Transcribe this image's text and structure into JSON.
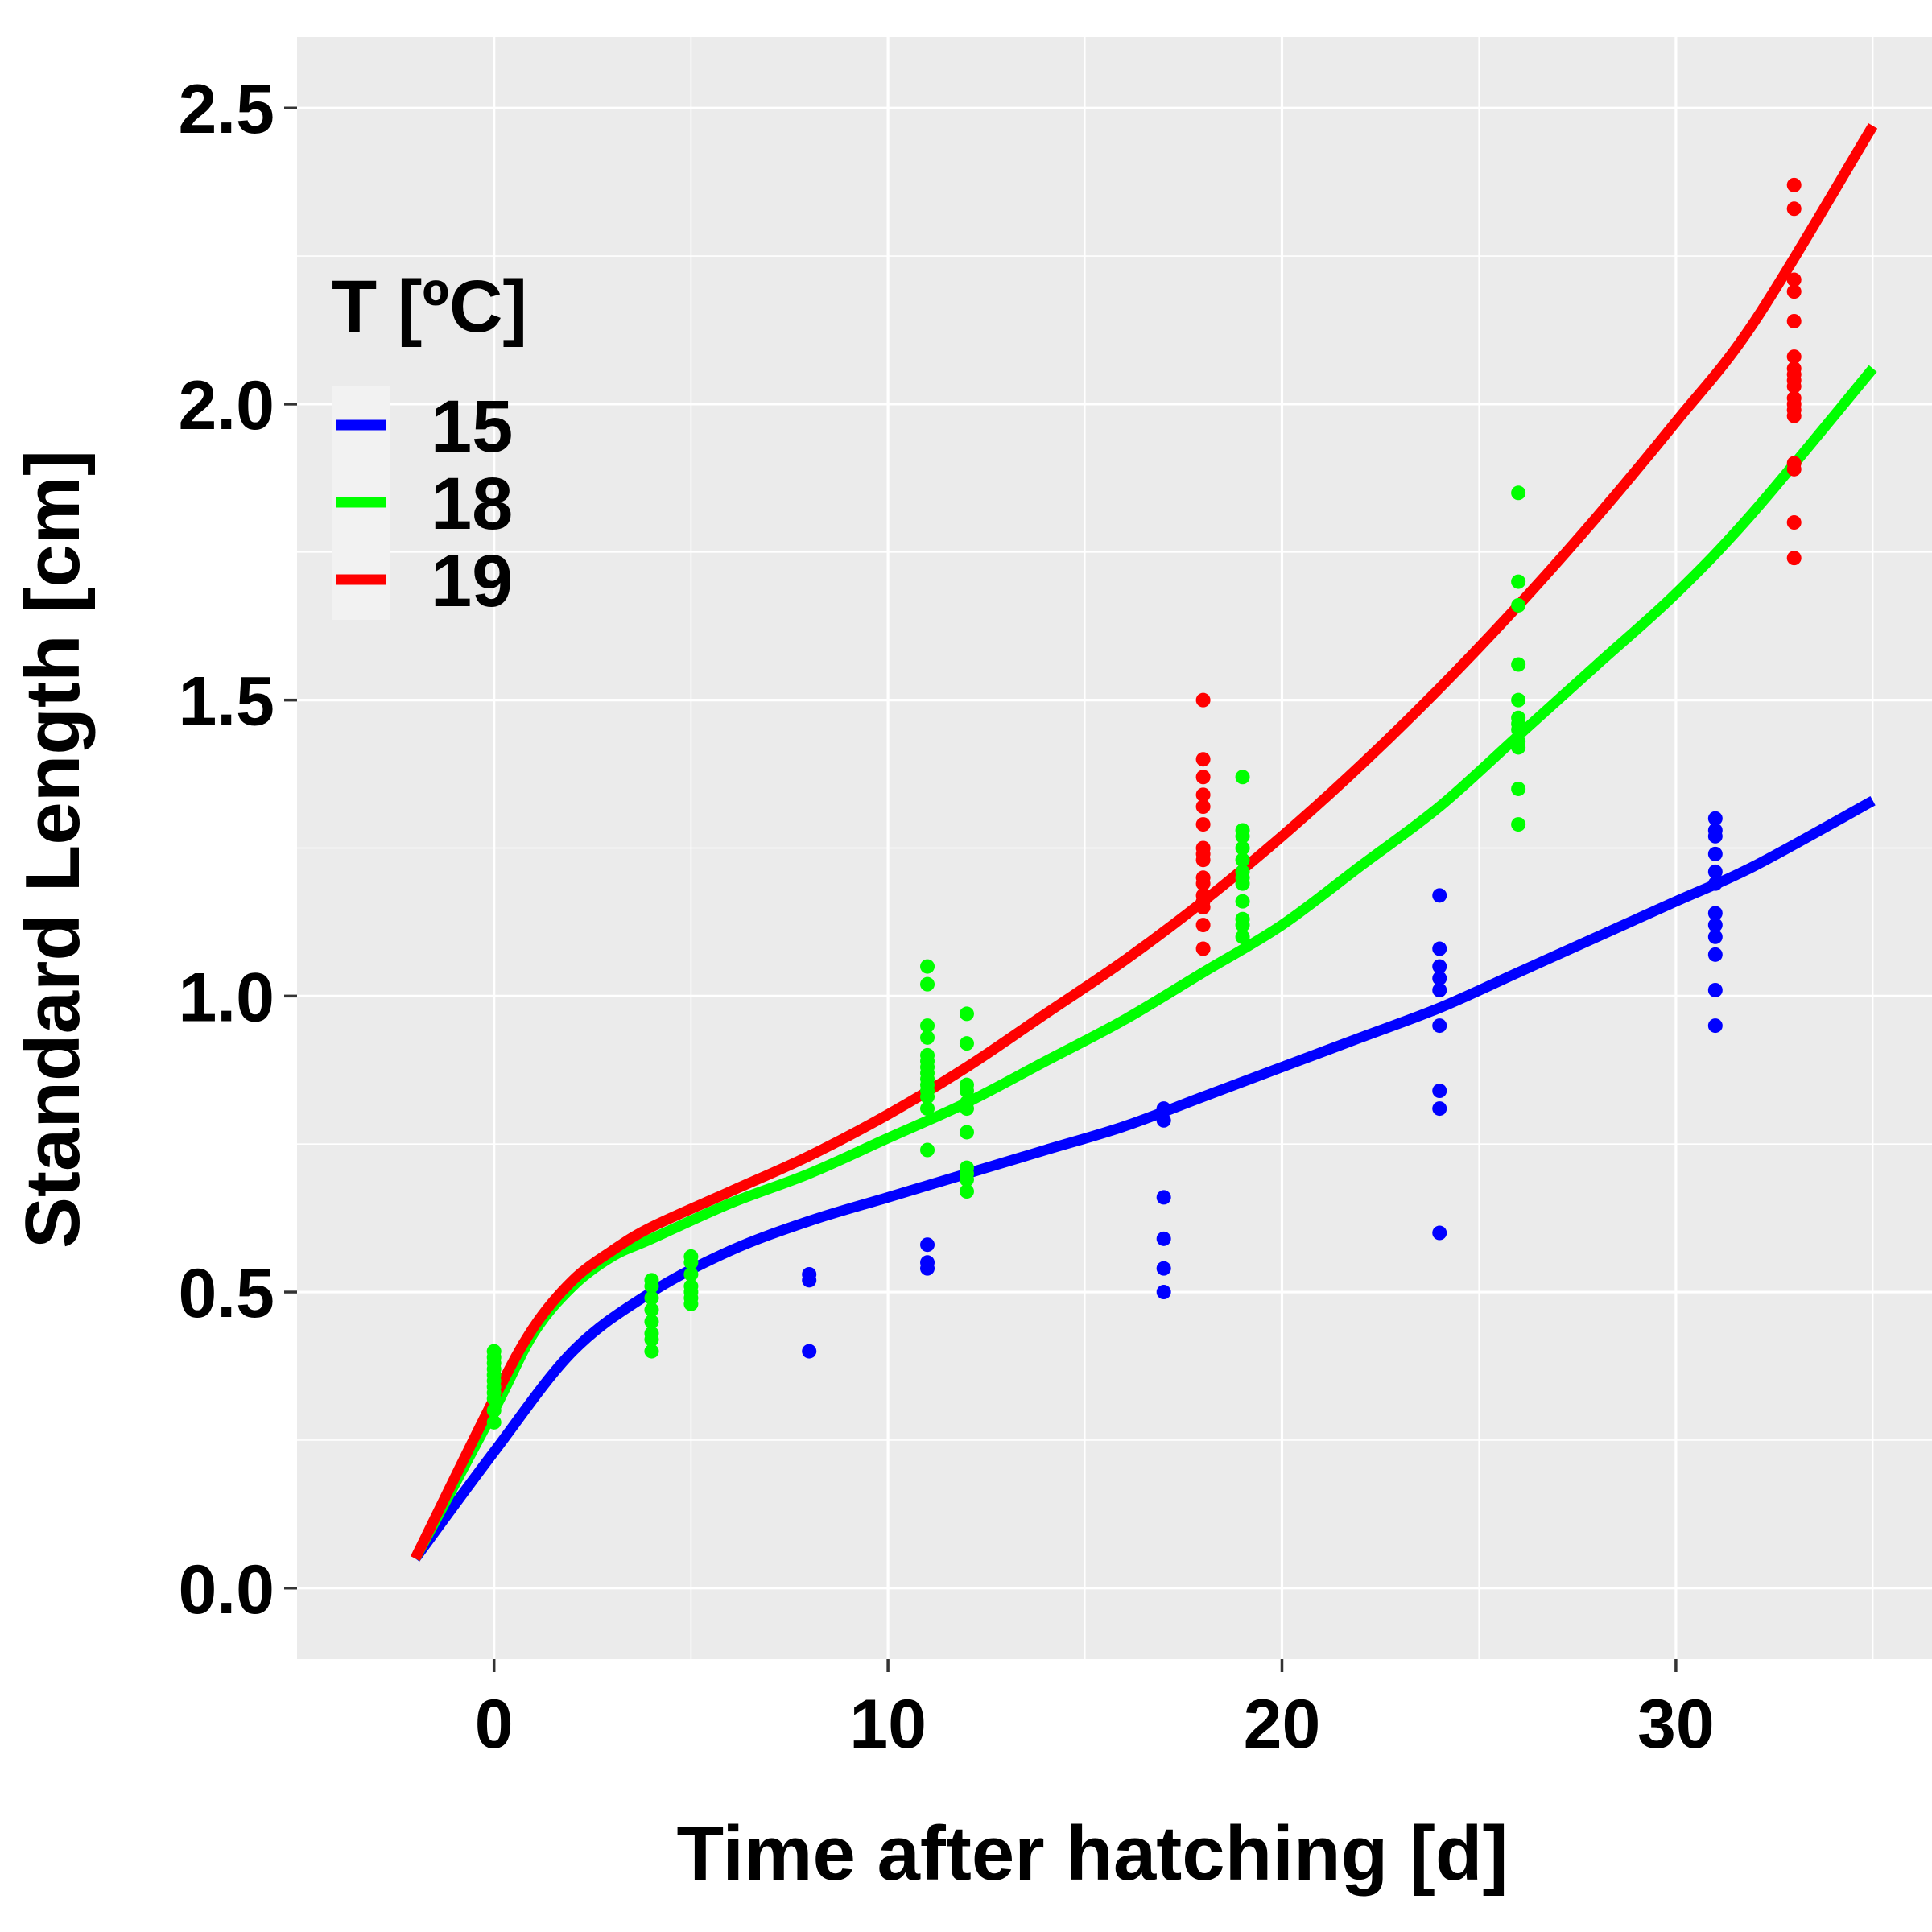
{
  "chart_data": {
    "type": "scatter",
    "xlabel": "Time after hatching [d]",
    "ylabel": "Standard Length [cm]",
    "xlim": [
      -5,
      36.5
    ],
    "ylim": [
      -0.12,
      2.62
    ],
    "x_ticks": [
      0,
      10,
      20,
      30
    ],
    "x_tick_labels": [
      "0",
      "10",
      "20",
      "30"
    ],
    "y_ticks": [
      0.0,
      0.5,
      1.0,
      1.5,
      2.0,
      2.5
    ],
    "y_tick_labels": [
      "0.0",
      "0.5",
      "1.0",
      "1.5",
      "2.0",
      "2.5"
    ],
    "grid": true,
    "background": "#ebebeb",
    "legend": {
      "title": "T [ºC]",
      "placement": "upper-left inside plot",
      "entries": [
        "15",
        "18",
        "19"
      ]
    },
    "series": [
      {
        "name": "15",
        "color": "#0000ff",
        "curve": [
          [
            -2,
            0.05
          ],
          [
            0,
            0.23
          ],
          [
            2,
            0.4
          ],
          [
            4,
            0.5
          ],
          [
            6,
            0.57
          ],
          [
            8,
            0.62
          ],
          [
            10,
            0.66
          ],
          [
            12,
            0.7
          ],
          [
            14,
            0.74
          ],
          [
            16,
            0.78
          ],
          [
            18,
            0.83
          ],
          [
            20,
            0.88
          ],
          [
            22,
            0.93
          ],
          [
            24,
            0.98
          ],
          [
            26,
            1.04
          ],
          [
            28,
            1.1
          ],
          [
            30,
            1.16
          ],
          [
            32,
            1.22
          ],
          [
            35,
            1.33
          ]
        ],
        "points": [
          [
            8,
            0.53
          ],
          [
            8,
            0.52
          ],
          [
            8,
            0.4
          ],
          [
            11,
            0.58
          ],
          [
            11,
            0.55
          ],
          [
            11,
            0.54
          ],
          [
            17,
            0.81
          ],
          [
            17,
            0.79
          ],
          [
            17,
            0.66
          ],
          [
            17,
            0.59
          ],
          [
            17,
            0.54
          ],
          [
            17,
            0.5
          ],
          [
            24,
            1.17
          ],
          [
            24,
            1.08
          ],
          [
            24,
            1.05
          ],
          [
            24,
            1.03
          ],
          [
            24,
            1.01
          ],
          [
            24,
            0.95
          ],
          [
            24,
            0.84
          ],
          [
            24,
            0.81
          ],
          [
            24,
            0.6
          ],
          [
            31,
            1.3
          ],
          [
            31,
            1.28
          ],
          [
            31,
            1.27
          ],
          [
            31,
            1.24
          ],
          [
            31,
            1.21
          ],
          [
            31,
            1.19
          ],
          [
            31,
            1.14
          ],
          [
            31,
            1.12
          ],
          [
            31,
            1.1
          ],
          [
            31,
            1.07
          ],
          [
            31,
            1.01
          ],
          [
            31,
            0.95
          ]
        ]
      },
      {
        "name": "18",
        "color": "#00ff00",
        "curve": [
          [
            -2,
            0.05
          ],
          [
            0,
            0.3
          ],
          [
            1,
            0.43
          ],
          [
            2,
            0.51
          ],
          [
            3,
            0.56
          ],
          [
            4,
            0.59
          ],
          [
            6,
            0.65
          ],
          [
            8,
            0.7
          ],
          [
            10,
            0.76
          ],
          [
            12,
            0.82
          ],
          [
            14,
            0.89
          ],
          [
            16,
            0.96
          ],
          [
            18,
            1.04
          ],
          [
            20,
            1.12
          ],
          [
            22,
            1.22
          ],
          [
            24,
            1.32
          ],
          [
            26,
            1.44
          ],
          [
            28,
            1.56
          ],
          [
            30,
            1.68
          ],
          [
            32,
            1.82
          ],
          [
            35,
            2.06
          ]
        ],
        "points": [
          [
            0,
            0.4
          ],
          [
            0,
            0.39
          ],
          [
            0,
            0.38
          ],
          [
            0,
            0.37
          ],
          [
            0,
            0.36
          ],
          [
            0,
            0.35
          ],
          [
            0,
            0.34
          ],
          [
            0,
            0.33
          ],
          [
            0,
            0.32
          ],
          [
            0,
            0.3
          ],
          [
            0,
            0.28
          ],
          [
            4,
            0.52
          ],
          [
            4,
            0.51
          ],
          [
            4,
            0.49
          ],
          [
            4,
            0.47
          ],
          [
            4,
            0.45
          ],
          [
            4,
            0.43
          ],
          [
            4,
            0.42
          ],
          [
            4,
            0.4
          ],
          [
            5,
            0.56
          ],
          [
            5,
            0.55
          ],
          [
            5,
            0.53
          ],
          [
            5,
            0.51
          ],
          [
            5,
            0.5
          ],
          [
            5,
            0.49
          ],
          [
            5,
            0.48
          ],
          [
            11,
            1.05
          ],
          [
            11,
            1.02
          ],
          [
            11,
            0.95
          ],
          [
            11,
            0.93
          ],
          [
            11,
            0.9
          ],
          [
            11,
            0.89
          ],
          [
            11,
            0.88
          ],
          [
            11,
            0.87
          ],
          [
            11,
            0.86
          ],
          [
            11,
            0.85
          ],
          [
            11,
            0.84
          ],
          [
            11,
            0.83
          ],
          [
            11,
            0.81
          ],
          [
            11,
            0.74
          ],
          [
            12,
            0.97
          ],
          [
            12,
            0.92
          ],
          [
            12,
            0.85
          ],
          [
            12,
            0.84
          ],
          [
            12,
            0.82
          ],
          [
            12,
            0.81
          ],
          [
            12,
            0.77
          ],
          [
            12,
            0.71
          ],
          [
            12,
            0.7
          ],
          [
            12,
            0.69
          ],
          [
            12,
            0.67
          ],
          [
            19,
            1.37
          ],
          [
            19,
            1.28
          ],
          [
            19,
            1.27
          ],
          [
            19,
            1.25
          ],
          [
            19,
            1.23
          ],
          [
            19,
            1.21
          ],
          [
            19,
            1.2
          ],
          [
            19,
            1.19
          ],
          [
            19,
            1.16
          ],
          [
            19,
            1.13
          ],
          [
            19,
            1.12
          ],
          [
            19,
            1.1
          ],
          [
            26,
            1.85
          ],
          [
            26,
            1.7
          ],
          [
            26,
            1.66
          ],
          [
            26,
            1.56
          ],
          [
            26,
            1.5
          ],
          [
            26,
            1.47
          ],
          [
            26,
            1.46
          ],
          [
            26,
            1.45
          ],
          [
            26,
            1.43
          ],
          [
            26,
            1.42
          ],
          [
            26,
            1.35
          ],
          [
            26,
            1.29
          ]
        ]
      },
      {
        "name": "19",
        "color": "#ff0000",
        "curve": [
          [
            -2,
            0.05
          ],
          [
            0,
            0.32
          ],
          [
            1,
            0.44
          ],
          [
            2,
            0.52
          ],
          [
            3,
            0.57
          ],
          [
            4,
            0.61
          ],
          [
            6,
            0.67
          ],
          [
            8,
            0.73
          ],
          [
            10,
            0.8
          ],
          [
            12,
            0.88
          ],
          [
            14,
            0.97
          ],
          [
            16,
            1.06
          ],
          [
            18,
            1.16
          ],
          [
            20,
            1.27
          ],
          [
            22,
            1.39
          ],
          [
            24,
            1.52
          ],
          [
            26,
            1.66
          ],
          [
            28,
            1.81
          ],
          [
            30,
            1.97
          ],
          [
            32,
            2.14
          ],
          [
            35,
            2.47
          ]
        ],
        "points": [
          [
            18,
            1.5
          ],
          [
            18,
            1.4
          ],
          [
            18,
            1.37
          ],
          [
            18,
            1.34
          ],
          [
            18,
            1.32
          ],
          [
            18,
            1.29
          ],
          [
            18,
            1.25
          ],
          [
            18,
            1.24
          ],
          [
            18,
            1.23
          ],
          [
            18,
            1.2
          ],
          [
            18,
            1.19
          ],
          [
            18,
            1.17
          ],
          [
            18,
            1.16
          ],
          [
            18,
            1.15
          ],
          [
            18,
            1.12
          ],
          [
            18,
            1.08
          ],
          [
            33,
            2.37
          ],
          [
            33,
            2.33
          ],
          [
            33,
            2.21
          ],
          [
            33,
            2.19
          ],
          [
            33,
            2.14
          ],
          [
            33,
            2.08
          ],
          [
            33,
            2.06
          ],
          [
            33,
            2.05
          ],
          [
            33,
            2.04
          ],
          [
            33,
            2.03
          ],
          [
            33,
            2.01
          ],
          [
            33,
            2.0
          ],
          [
            33,
            1.99
          ],
          [
            33,
            1.98
          ],
          [
            33,
            1.9
          ],
          [
            33,
            1.89
          ],
          [
            33,
            1.8
          ],
          [
            33,
            1.74
          ]
        ]
      }
    ]
  }
}
